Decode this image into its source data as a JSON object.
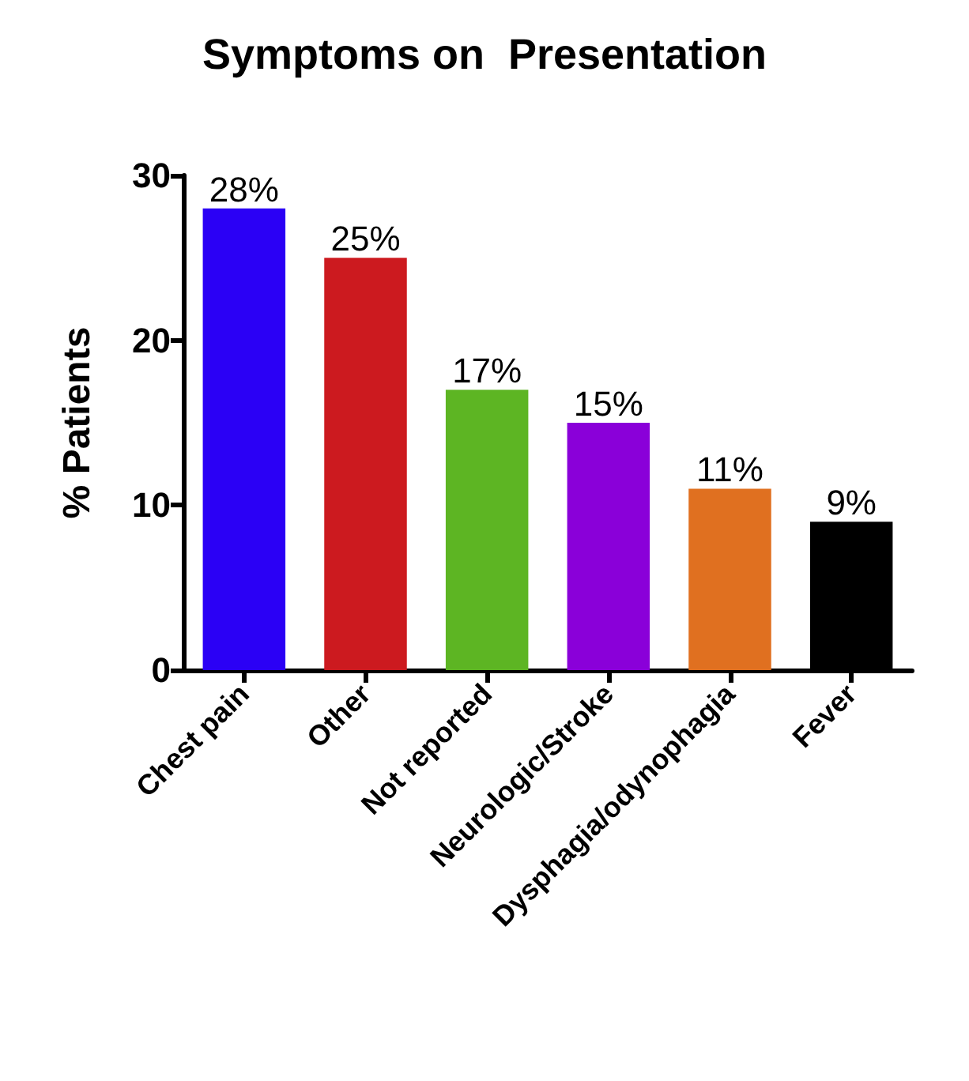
{
  "chart_data": {
    "type": "bar",
    "title": "Symptoms on  Presentation",
    "ylabel": "% Patients",
    "categories": [
      "Chest pain",
      "Other",
      "Not reported",
      "Neurologic/Stroke",
      "Dysphagia/odynophagia",
      "Fever"
    ],
    "values": [
      28,
      25,
      17,
      15,
      11,
      9
    ],
    "colors": [
      "#2b00f5",
      "#cc1a1f",
      "#5db523",
      "#8a00d9",
      "#e07020",
      "#000000"
    ],
    "value_labels": [
      "28%",
      "25%",
      "17%",
      "15%",
      "11%",
      "9%"
    ],
    "ylim": [
      0,
      30
    ],
    "yticks": [
      0,
      10,
      20,
      30
    ],
    "grid": false
  }
}
